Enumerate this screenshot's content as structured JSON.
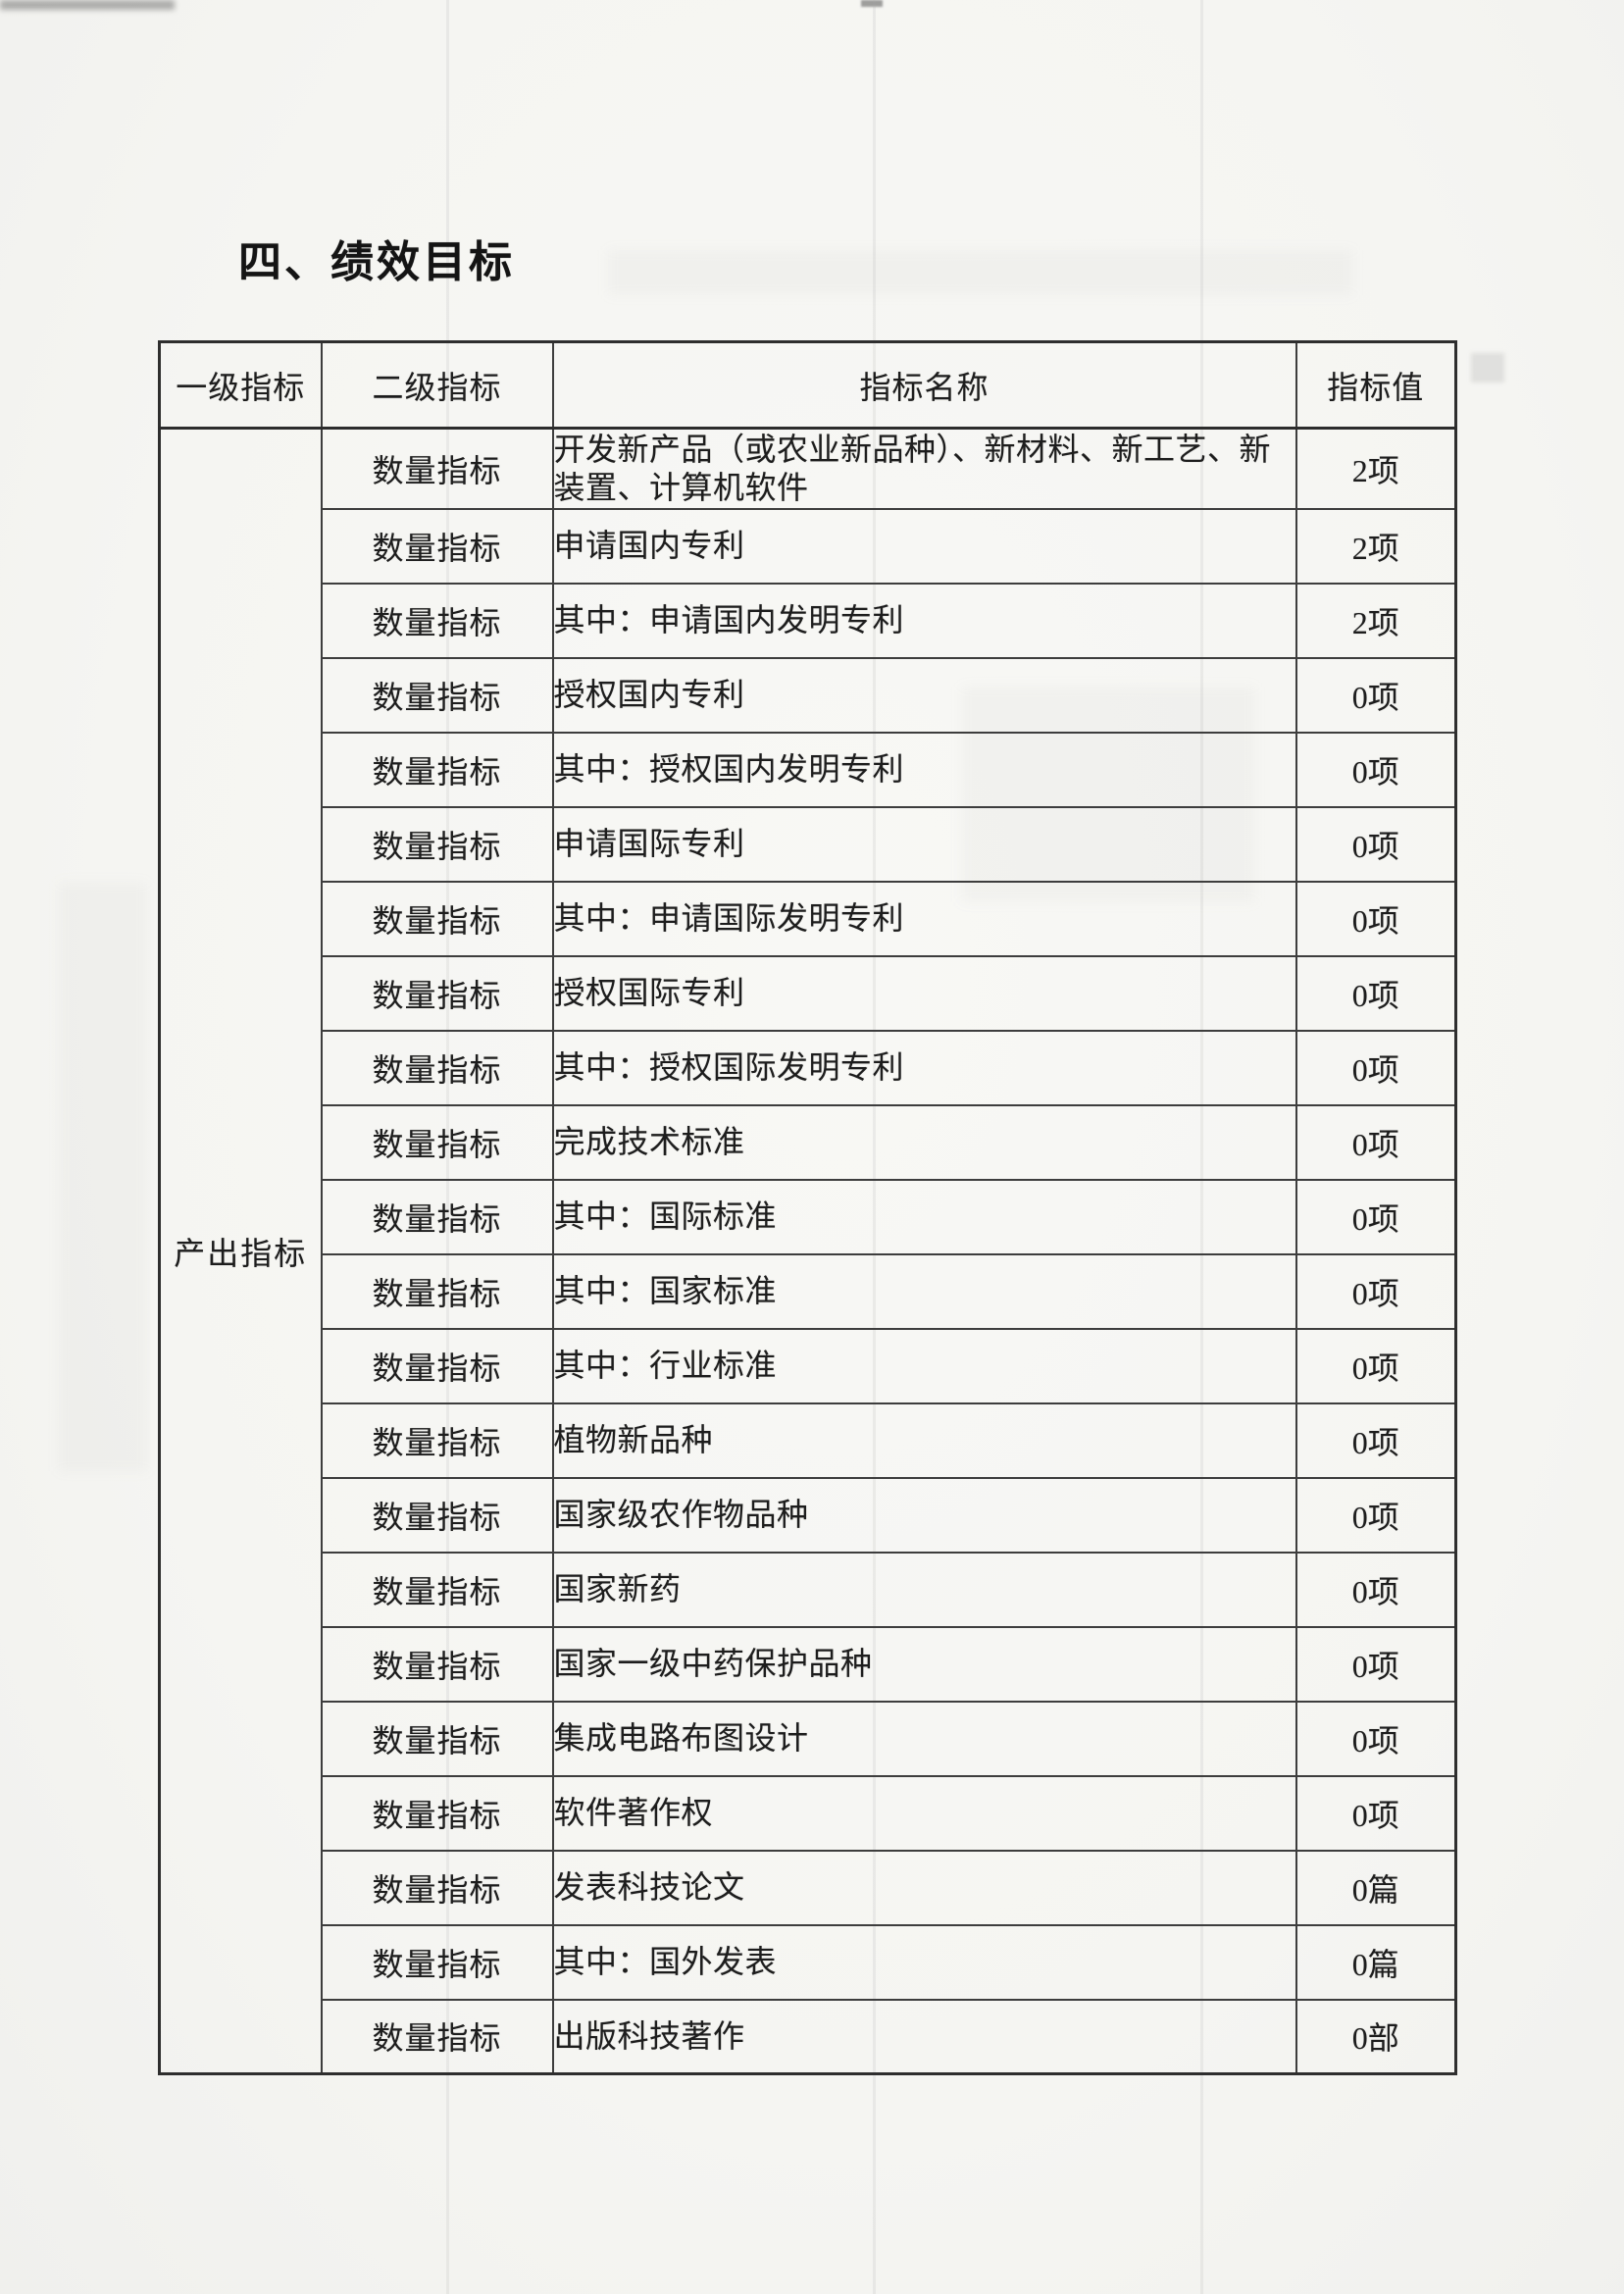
{
  "document": {
    "section_title": "四、绩效目标"
  },
  "table": {
    "headers": [
      "一级指标",
      "二级指标",
      "指标名称",
      "指标值"
    ],
    "level1_indicator": "产出指标",
    "rows": [
      {
        "level2": "数量指标",
        "name": "开发新产品（或农业新品种）、新材料、新工艺、新装置、计算机软件",
        "value": "2项"
      },
      {
        "level2": "数量指标",
        "name": "申请国内专利",
        "value": "2项"
      },
      {
        "level2": "数量指标",
        "name": "其中：申请国内发明专利",
        "value": "2项"
      },
      {
        "level2": "数量指标",
        "name": "授权国内专利",
        "value": "0项"
      },
      {
        "level2": "数量指标",
        "name": "其中：授权国内发明专利",
        "value": "0项"
      },
      {
        "level2": "数量指标",
        "name": "申请国际专利",
        "value": "0项"
      },
      {
        "level2": "数量指标",
        "name": "其中：申请国际发明专利",
        "value": "0项"
      },
      {
        "level2": "数量指标",
        "name": "授权国际专利",
        "value": "0项"
      },
      {
        "level2": "数量指标",
        "name": "其中：授权国际发明专利",
        "value": "0项"
      },
      {
        "level2": "数量指标",
        "name": "完成技术标准",
        "value": "0项"
      },
      {
        "level2": "数量指标",
        "name": "其中：国际标准",
        "value": "0项"
      },
      {
        "level2": "数量指标",
        "name": "其中：国家标准",
        "value": "0项"
      },
      {
        "level2": "数量指标",
        "name": "其中：行业标准",
        "value": "0项"
      },
      {
        "level2": "数量指标",
        "name": "植物新品种",
        "value": "0项"
      },
      {
        "level2": "数量指标",
        "name": "国家级农作物品种",
        "value": "0项"
      },
      {
        "level2": "数量指标",
        "name": "国家新药",
        "value": "0项"
      },
      {
        "level2": "数量指标",
        "name": "国家一级中药保护品种",
        "value": "0项"
      },
      {
        "level2": "数量指标",
        "name": "集成电路布图设计",
        "value": "0项"
      },
      {
        "level2": "数量指标",
        "name": "软件著作权",
        "value": "0项"
      },
      {
        "level2": "数量指标",
        "name": "发表科技论文",
        "value": "0篇"
      },
      {
        "level2": "数量指标",
        "name": "其中：国外发表",
        "value": "0篇"
      },
      {
        "level2": "数量指标",
        "name": "出版科技著作",
        "value": "0部"
      }
    ]
  }
}
